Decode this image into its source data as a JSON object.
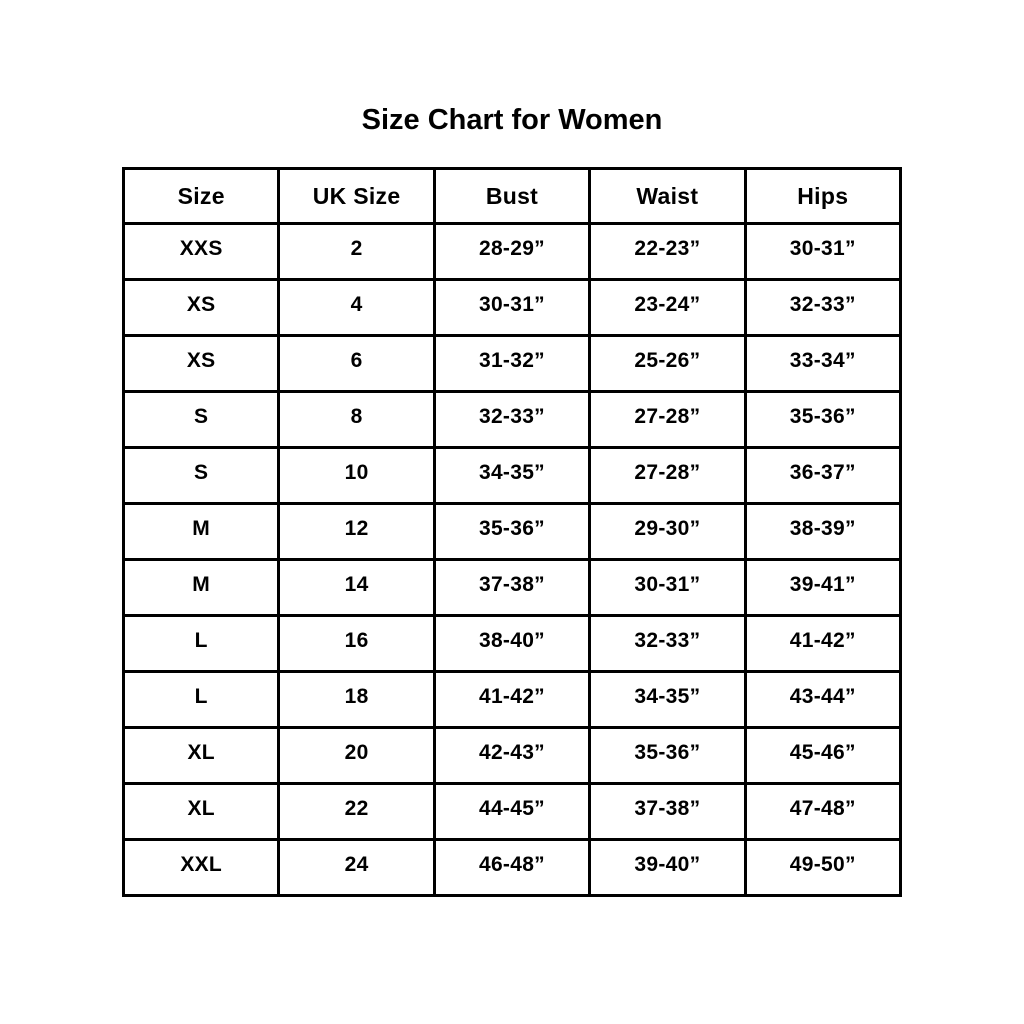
{
  "title": "Size Chart for Women",
  "chart_data": {
    "type": "table",
    "title": "Size Chart for Women",
    "columns": [
      "Size",
      "UK Size",
      "Bust",
      "Waist",
      "Hips"
    ],
    "rows": [
      [
        "XXS",
        "2",
        "28-29”",
        "22-23”",
        "30-31”"
      ],
      [
        "XS",
        "4",
        "30-31”",
        "23-24”",
        "32-33”"
      ],
      [
        "XS",
        "6",
        "31-32”",
        "25-26”",
        "33-34”"
      ],
      [
        "S",
        "8",
        "32-33”",
        "27-28”",
        "35-36”"
      ],
      [
        "S",
        "10",
        "34-35”",
        "27-28”",
        "36-37”"
      ],
      [
        "M",
        "12",
        "35-36”",
        "29-30”",
        "38-39”"
      ],
      [
        "M",
        "14",
        "37-38”",
        "30-31”",
        "39-41”"
      ],
      [
        "L",
        "16",
        "38-40”",
        "32-33”",
        "41-42”"
      ],
      [
        "L",
        "18",
        "41-42”",
        "34-35”",
        "43-44”"
      ],
      [
        "XL",
        "20",
        "42-43”",
        "35-36”",
        "45-46”"
      ],
      [
        "XL",
        "22",
        "44-45”",
        "37-38”",
        "47-48”"
      ],
      [
        "XXL",
        "24",
        "46-48”",
        "39-40”",
        "49-50”"
      ]
    ]
  },
  "colors": {
    "text": "#000000",
    "border": "#000000",
    "background": "#ffffff"
  }
}
